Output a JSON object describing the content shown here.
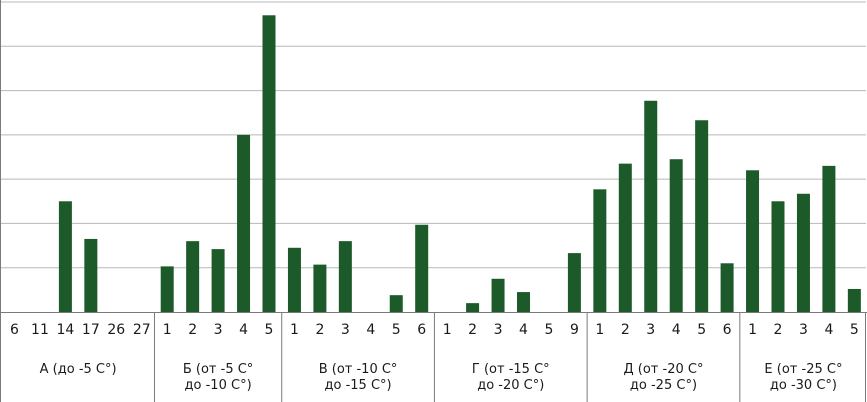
{
  "chart_data": {
    "type": "bar",
    "title": "",
    "xlabel": "",
    "ylabel": "",
    "ylim": [
      0,
      7
    ],
    "grid": true,
    "legend": "none",
    "bar_color": "#1d5a2a",
    "grid_color": "#b8b8b8",
    "groups": [
      {
        "label_lines": [
          "А (до -5 С°)"
        ],
        "categories": [
          "6",
          "11",
          "14",
          "17",
          "26",
          "27"
        ],
        "values": [
          0,
          0,
          2.5,
          1.65,
          0,
          0
        ]
      },
      {
        "label_lines": [
          "Б (от -5 С°",
          "до -10 С°)"
        ],
        "categories": [
          "1",
          "2",
          "3",
          "4",
          "5"
        ],
        "values": [
          1.03,
          1.6,
          1.42,
          4.0,
          6.7
        ]
      },
      {
        "label_lines": [
          "В (от -10 С°",
          "до -15 С°)"
        ],
        "categories": [
          "1",
          "2",
          "3",
          "4",
          "5",
          "6"
        ],
        "values": [
          1.45,
          1.07,
          1.6,
          0,
          0.38,
          1.97
        ]
      },
      {
        "label_lines": [
          "Г (от -15 С°",
          "до -20 С°)"
        ],
        "categories": [
          "1",
          "2",
          "3",
          "4",
          "5",
          "9"
        ],
        "values": [
          0,
          0.2,
          0.75,
          0.45,
          0,
          1.33
        ]
      },
      {
        "label_lines": [
          "Д (от -20 С°",
          "до -25 С°)"
        ],
        "categories": [
          "1",
          "2",
          "3",
          "4",
          "5",
          "6"
        ],
        "values": [
          2.77,
          3.35,
          4.77,
          3.45,
          4.33,
          1.1
        ]
      },
      {
        "label_lines": [
          "Е (от -25 С°",
          "до -30 С°)"
        ],
        "categories": [
          "1",
          "2",
          "3",
          "4",
          "5"
        ],
        "values": [
          3.2,
          2.5,
          2.67,
          3.3,
          0.52
        ]
      }
    ]
  }
}
